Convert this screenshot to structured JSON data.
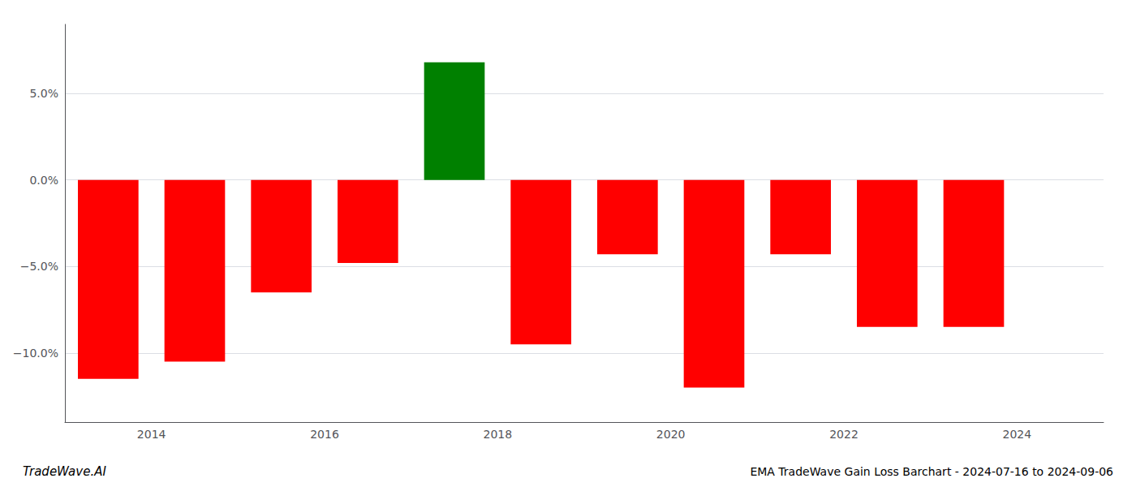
{
  "chart_data": {
    "type": "bar",
    "x": [
      2013.5,
      2014.5,
      2015.5,
      2016.5,
      2017.5,
      2018.5,
      2019.5,
      2020.5,
      2021.5,
      2022.5,
      2023.5
    ],
    "values": [
      -11.5,
      -10.5,
      -6.5,
      -4.8,
      6.8,
      -9.5,
      -4.3,
      -12.0,
      -4.3,
      -8.5,
      -8.5
    ],
    "colors": [
      "red",
      "red",
      "red",
      "red",
      "green",
      "red",
      "red",
      "red",
      "red",
      "red",
      "red"
    ],
    "xlim": [
      2013.0,
      2025.0
    ],
    "xticks": [
      2014,
      2016,
      2018,
      2020,
      2022,
      2024
    ],
    "ylim": [
      -14,
      9
    ],
    "yticks": [
      {
        "value": -10.0,
        "label": "−10.0%"
      },
      {
        "value": -5.0,
        "label": "−5.0%"
      },
      {
        "value": 0.0,
        "label": "0.0%"
      },
      {
        "value": 5.0,
        "label": "5.0%"
      }
    ],
    "grid": true,
    "annotations": [
      "TradeWave.AI",
      "EMA TradeWave Gain Loss Barchart - 2024-07-16 to 2024-09-06"
    ]
  }
}
